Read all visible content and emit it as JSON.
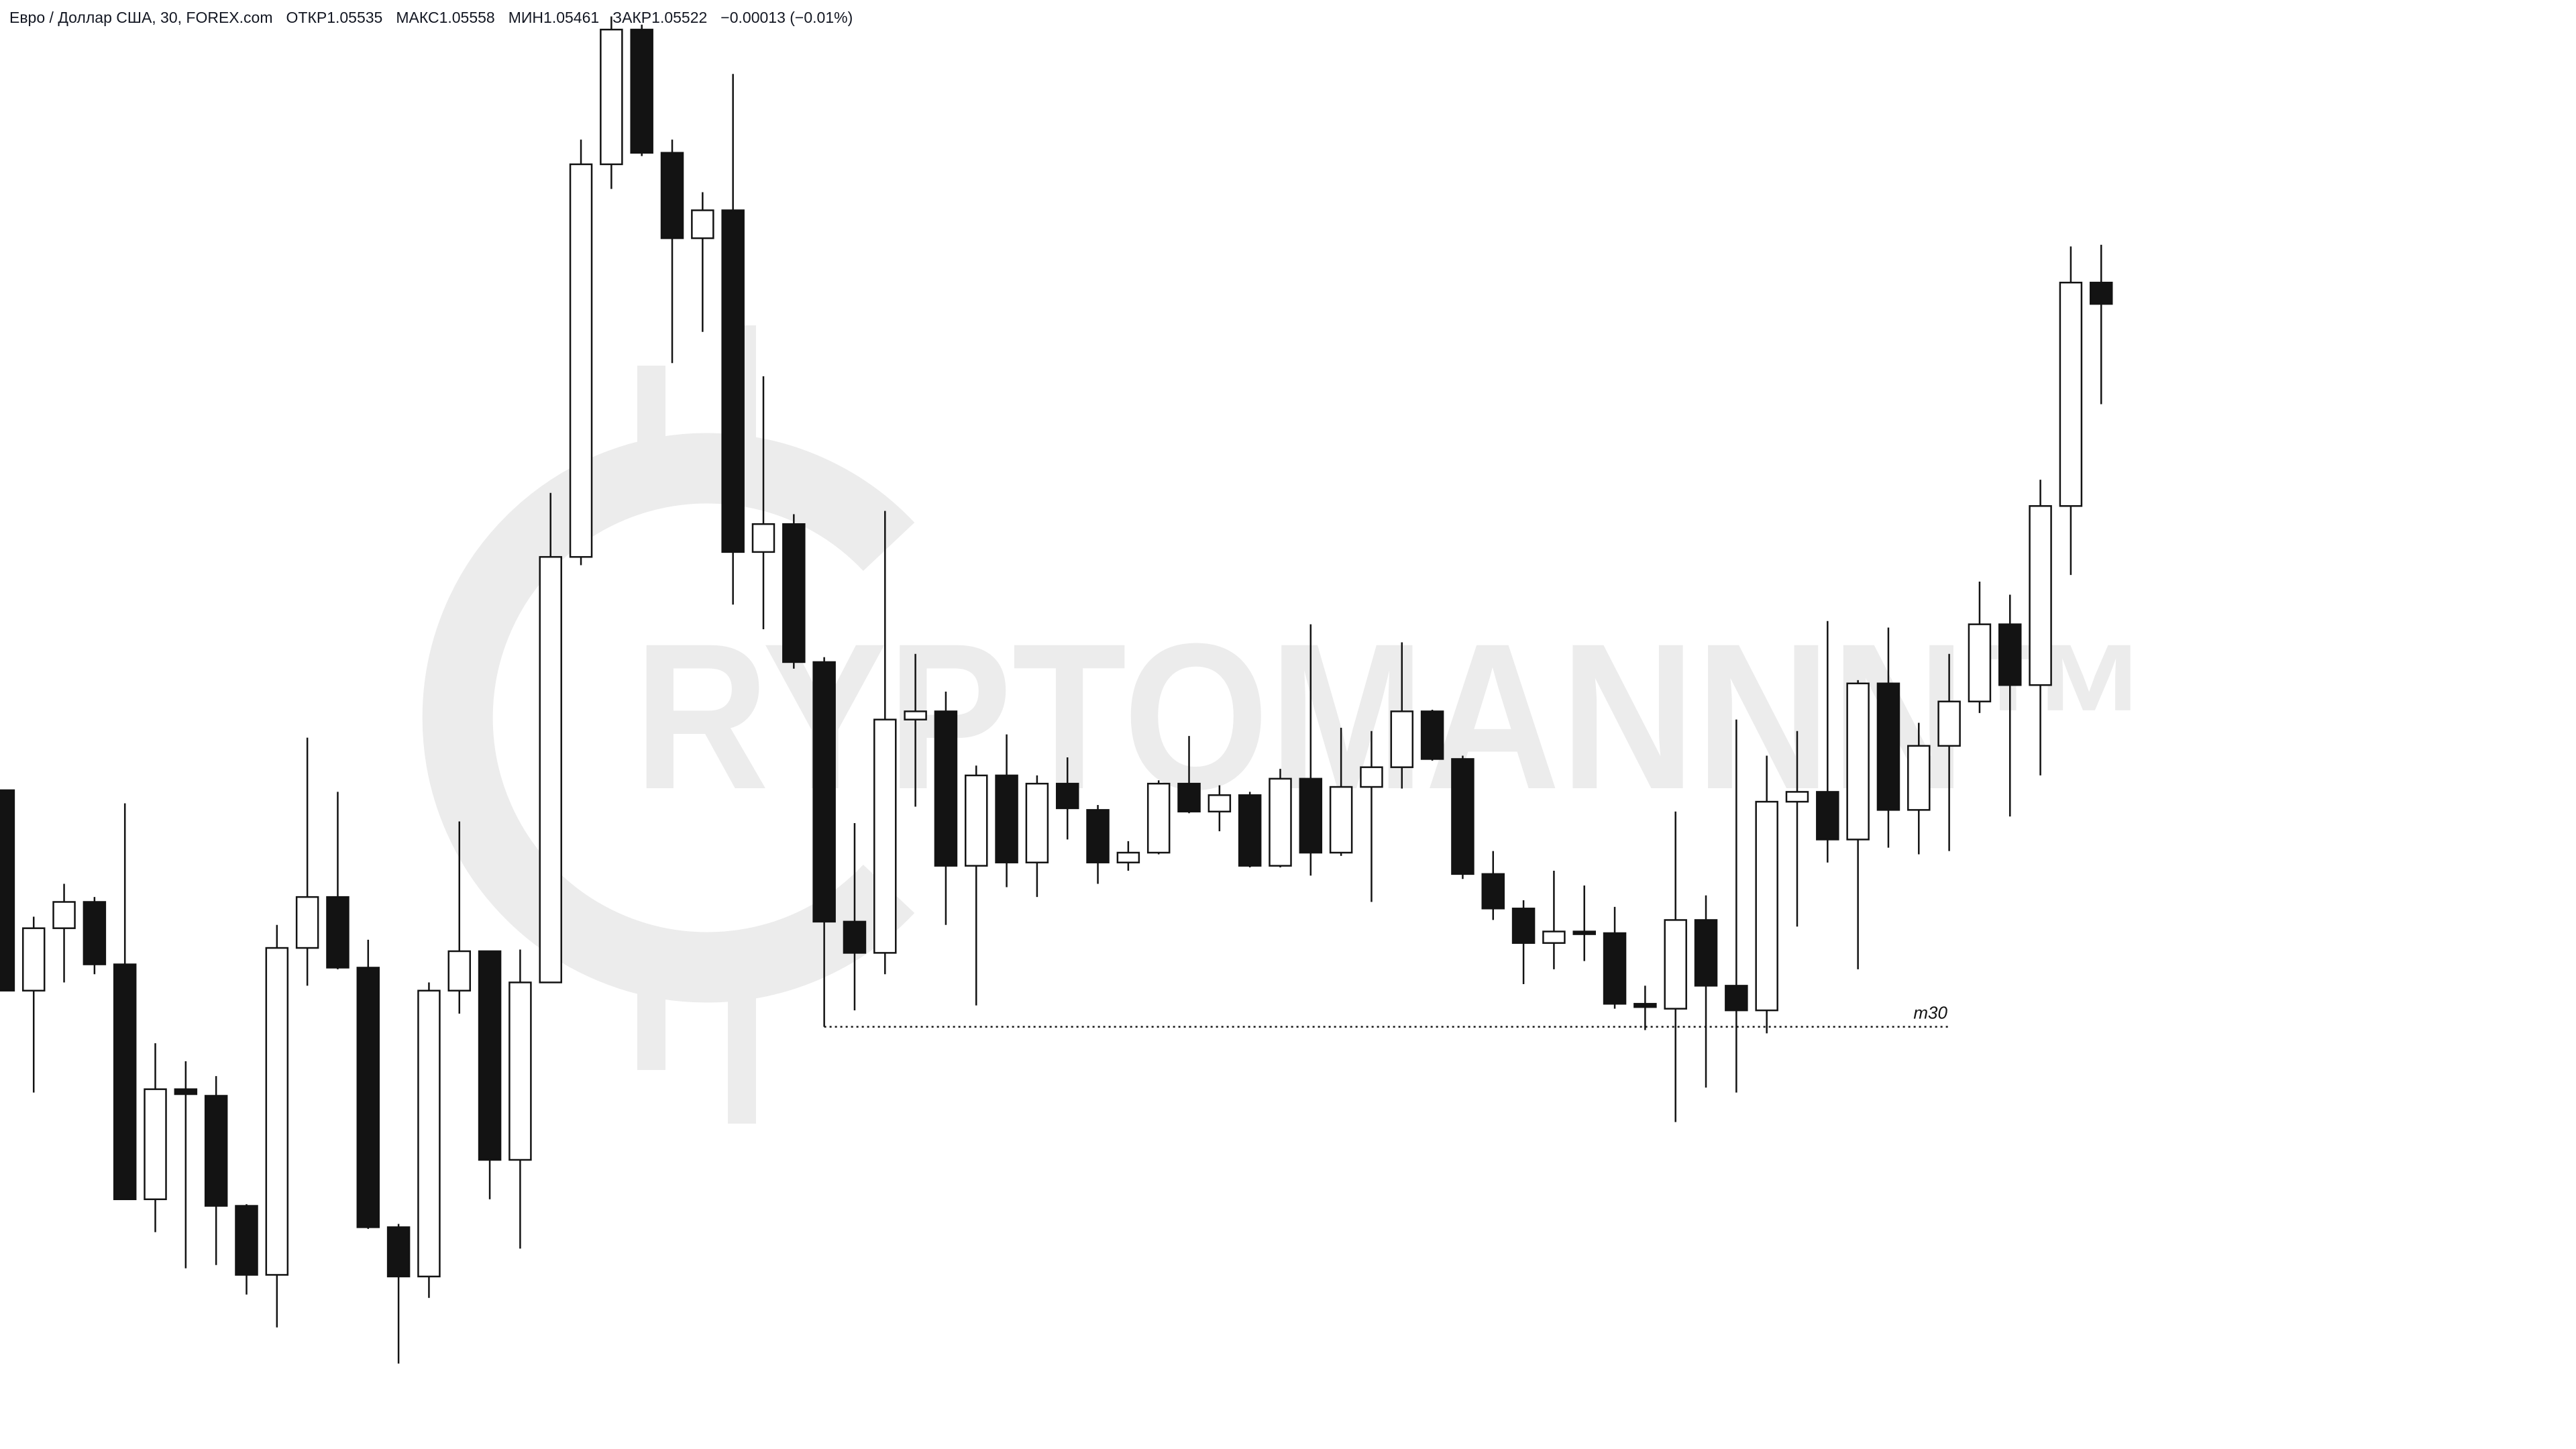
{
  "chart_data": {
    "type": "candlestick",
    "title": "Евро / Доллар США, 30, FOREX.com",
    "legend": [
      {
        "label": "ОТКР",
        "value": 1.05535
      },
      {
        "label": "МАКС",
        "value": 1.05558
      },
      {
        "label": "МИН",
        "value": 1.05461
      },
      {
        "label": "ЗАКР",
        "value": 1.05522
      }
    ],
    "change": "−0.00013 (−0.01%)",
    "watermark": "RYPTOMANNN™",
    "up_color": "#ffffff",
    "down_color": "#131313",
    "border_color": "#131313",
    "ylim": [
      1.04825,
      1.05707
    ],
    "levels": [
      {
        "label": "m30",
        "value": 1.05082
      }
    ],
    "open": [
      1.05226,
      1.05104,
      1.05142,
      1.05158,
      1.0512,
      1.04977,
      1.05044,
      1.0504,
      1.04973,
      1.04931,
      1.0513,
      1.05161,
      1.05118,
      1.0496,
      1.0493,
      1.05104,
      1.05128,
      1.05001,
      1.05109,
      1.05368,
      1.05607,
      1.05689,
      1.05614,
      1.05562,
      1.05579,
      1.05371,
      1.05388,
      1.05304,
      1.05146,
      1.05127,
      1.05269,
      1.05274,
      1.0518,
      1.05235,
      1.05182,
      1.0523,
      1.05214,
      1.05182,
      1.05188,
      1.0523,
      1.05213,
      1.05223,
      1.0518,
      1.05233,
      1.05188,
      1.05228,
      1.0524,
      1.05274,
      1.05245,
      1.05175,
      1.05154,
      1.05133,
      1.0514,
      1.05139,
      1.05096,
      1.05093,
      1.05147,
      1.05107,
      1.05092,
      1.05219,
      1.05225,
      1.05196,
      1.05291,
      1.05214,
      1.05253,
      1.0528,
      1.05327,
      1.0529,
      1.05399,
      1.05535
    ],
    "high": [
      1.05226,
      1.05149,
      1.05169,
      1.05161,
      1.05218,
      1.05072,
      1.05061,
      1.05052,
      1.04974,
      1.05144,
      1.05258,
      1.05225,
      1.05135,
      1.04962,
      1.05109,
      1.05207,
      1.05128,
      1.05129,
      1.05407,
      1.05622,
      1.05697,
      1.05692,
      1.05622,
      1.0559,
      1.05662,
      1.05478,
      1.05394,
      1.05307,
      1.05206,
      1.05396,
      1.05309,
      1.05286,
      1.05241,
      1.0526,
      1.05235,
      1.05246,
      1.05217,
      1.05195,
      1.05232,
      1.05259,
      1.05229,
      1.05225,
      1.05239,
      1.05327,
      1.05264,
      1.05262,
      1.05316,
      1.05275,
      1.05247,
      1.05189,
      1.05159,
      1.05177,
      1.05168,
      1.05155,
      1.05107,
      1.05213,
      1.05162,
      1.05269,
      1.05247,
      1.05262,
      1.05329,
      1.05293,
      1.05325,
      1.05267,
      1.05309,
      1.05353,
      1.05345,
      1.05415,
      1.05557,
      1.05558
    ],
    "low": [
      1.05104,
      1.05042,
      1.05109,
      1.05114,
      1.04977,
      1.04957,
      1.04935,
      1.04937,
      1.04919,
      1.04899,
      1.05107,
      1.05117,
      1.04959,
      1.04877,
      1.04917,
      1.0509,
      1.04977,
      1.04947,
      1.05109,
      1.05363,
      1.05592,
      1.05612,
      1.05486,
      1.05505,
      1.05339,
      1.05324,
      1.053,
      1.05082,
      1.05092,
      1.05114,
      1.05216,
      1.05144,
      1.05095,
      1.05167,
      1.05161,
      1.05196,
      1.05169,
      1.05177,
      1.05187,
      1.05212,
      1.05201,
      1.05179,
      1.05179,
      1.05174,
      1.05186,
      1.05158,
      1.05227,
      1.05244,
      1.05172,
      1.05147,
      1.05108,
      1.05117,
      1.05122,
      1.05093,
      1.0508,
      1.05024,
      1.05045,
      1.05042,
      1.05078,
      1.05143,
      1.05182,
      1.05117,
      1.05191,
      1.05187,
      1.05189,
      1.05273,
      1.0521,
      1.05235,
      1.05357,
      1.05461
    ],
    "close": [
      1.05104,
      1.05142,
      1.05158,
      1.0512,
      1.04977,
      1.05044,
      1.05041,
      1.04973,
      1.04931,
      1.0513,
      1.05161,
      1.05118,
      1.0496,
      1.0493,
      1.05104,
      1.05128,
      1.05001,
      1.05109,
      1.05368,
      1.05607,
      1.05689,
      1.05614,
      1.05562,
      1.05579,
      1.05371,
      1.05388,
      1.05304,
      1.05146,
      1.05127,
      1.05269,
      1.05274,
      1.0518,
      1.05235,
      1.05182,
      1.0523,
      1.05215,
      1.05182,
      1.05188,
      1.0523,
      1.05213,
      1.05223,
      1.0518,
      1.05233,
      1.05188,
      1.05228,
      1.0524,
      1.05274,
      1.05245,
      1.05175,
      1.05154,
      1.05133,
      1.0514,
      1.05139,
      1.05096,
      1.05094,
      1.05147,
      1.05107,
      1.05092,
      1.05219,
      1.05225,
      1.05196,
      1.05291,
      1.05214,
      1.05253,
      1.0528,
      1.05327,
      1.0529,
      1.05399,
      1.05535,
      1.05522
    ]
  }
}
